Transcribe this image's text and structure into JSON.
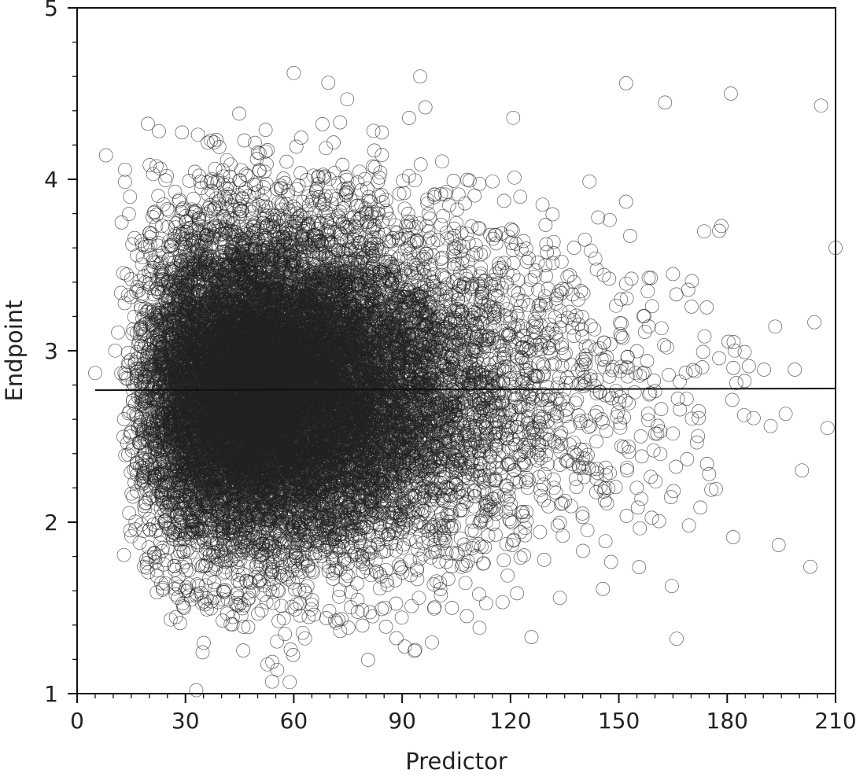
{
  "chart_data": {
    "type": "scatter",
    "title": "",
    "xlabel": "Predictor",
    "ylabel": "Endpoint",
    "xlim": [
      0,
      210
    ],
    "ylim": [
      1,
      5
    ],
    "x_ticks": [
      0,
      30,
      60,
      90,
      120,
      150,
      180,
      210
    ],
    "x_tick_labels": [
      "0",
      "30",
      "60",
      "90",
      "120",
      "150",
      "180",
      "210"
    ],
    "y_ticks": [
      1,
      2,
      3,
      4,
      5
    ],
    "y_tick_labels": [
      "1",
      "2",
      "3",
      "4",
      "5"
    ],
    "x_minor_step": 5,
    "y_minor_step": 0.2,
    "grid": false,
    "legend": "none",
    "marker": "open-circle",
    "marker_color": "#222222",
    "point_count_approx": 18000,
    "sample_points": [
      {
        "x": 5,
        "y": 2.87
      },
      {
        "x": 8,
        "y": 4.14
      },
      {
        "x": 33,
        "y": 1.02
      },
      {
        "x": 54,
        "y": 1.07
      },
      {
        "x": 60,
        "y": 4.62
      },
      {
        "x": 95,
        "y": 4.6
      },
      {
        "x": 152,
        "y": 4.56
      },
      {
        "x": 181,
        "y": 4.5
      },
      {
        "x": 206,
        "y": 4.43
      },
      {
        "x": 166,
        "y": 1.32
      },
      {
        "x": 203,
        "y": 1.74
      },
      {
        "x": 210,
        "y": 3.6
      }
    ],
    "fit_line": {
      "type": "linear",
      "x": [
        5,
        210
      ],
      "y": [
        2.77,
        2.78
      ]
    }
  }
}
